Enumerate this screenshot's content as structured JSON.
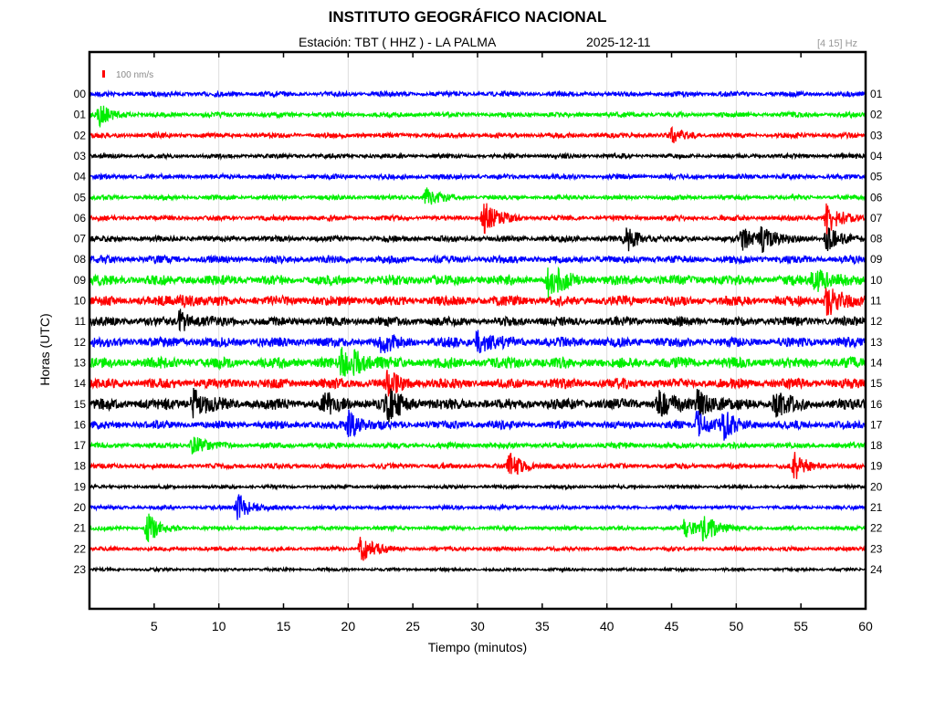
{
  "header": {
    "title": "INSTITUTO GEOGRÁFICO NACIONAL",
    "station": "Estación:  TBT ( HHZ ) - LA PALMA",
    "date": "2025-12-11",
    "band": "[4 15] Hz"
  },
  "chart_data": {
    "type": "line",
    "title": "INSTITUTO GEOGRÁFICO NACIONAL",
    "xlabel": "Tiempo (minutos)",
    "ylabel": "Horas (UTC)",
    "xlim": [
      0,
      60
    ],
    "x_ticks": [
      "5",
      "10",
      "15",
      "20",
      "25",
      "30",
      "35",
      "40",
      "45",
      "50",
      "55",
      "60"
    ],
    "y_ticks_left": [
      "00",
      "01",
      "02",
      "03",
      "04",
      "05",
      "06",
      "07",
      "08",
      "09",
      "10",
      "11",
      "12",
      "13",
      "14",
      "15",
      "16",
      "17",
      "18",
      "19",
      "20",
      "21",
      "22",
      "23"
    ],
    "y_ticks_right": [
      "01",
      "02",
      "03",
      "04",
      "05",
      "06",
      "07",
      "08",
      "09",
      "10",
      "11",
      "12",
      "13",
      "14",
      "15",
      "16",
      "17",
      "18",
      "19",
      "20",
      "21",
      "22",
      "23",
      "24"
    ],
    "scale_label": "100 nm/s",
    "colors": [
      "#0000ff",
      "#00ee00",
      "#ff0000",
      "#000000"
    ],
    "noise_level": [
      1,
      1,
      1,
      0.9,
      1,
      0.9,
      1,
      1.2,
      1.5,
      2,
      2,
      1.8,
      2,
      2.2,
      2,
      2.2,
      1.6,
      1.1,
      1,
      0.7,
      0.8,
      0.8,
      0.8,
      0.6
    ],
    "events": [
      {
        "hour": 1,
        "minute": 0.8,
        "amp": 4
      },
      {
        "hour": 2,
        "minute": 45,
        "amp": 3
      },
      {
        "hour": 5,
        "minute": 26,
        "amp": 4
      },
      {
        "hour": 6,
        "minute": 30.5,
        "amp": 7
      },
      {
        "hour": 6,
        "minute": 57,
        "amp": 7
      },
      {
        "hour": 7,
        "minute": 41.5,
        "amp": 5
      },
      {
        "hour": 7,
        "minute": 50.5,
        "amp": 5
      },
      {
        "hour": 7,
        "minute": 52,
        "amp": 5
      },
      {
        "hour": 7,
        "minute": 57,
        "amp": 5
      },
      {
        "hour": 9,
        "minute": 35.5,
        "amp": 7
      },
      {
        "hour": 9,
        "minute": 56,
        "amp": 6
      },
      {
        "hour": 10,
        "minute": 57,
        "amp": 7
      },
      {
        "hour": 10,
        "minute": 7,
        "amp": 3
      },
      {
        "hour": 11,
        "minute": 7,
        "amp": 5
      },
      {
        "hour": 12,
        "minute": 22.5,
        "amp": 4
      },
      {
        "hour": 12,
        "minute": 30,
        "amp": 5
      },
      {
        "hour": 13,
        "minute": 19.5,
        "amp": 5
      },
      {
        "hour": 13,
        "minute": 20.5,
        "amp": 4
      },
      {
        "hour": 14,
        "minute": 23,
        "amp": 5
      },
      {
        "hour": 15,
        "minute": 8,
        "amp": 6
      },
      {
        "hour": 15,
        "minute": 18,
        "amp": 5
      },
      {
        "hour": 15,
        "minute": 23,
        "amp": 8
      },
      {
        "hour": 15,
        "minute": 44,
        "amp": 5
      },
      {
        "hour": 15,
        "minute": 47,
        "amp": 6
      },
      {
        "hour": 15,
        "minute": 53,
        "amp": 5
      },
      {
        "hour": 16,
        "minute": 20,
        "amp": 6
      },
      {
        "hour": 16,
        "minute": 47,
        "amp": 6
      },
      {
        "hour": 16,
        "minute": 49,
        "amp": 5
      },
      {
        "hour": 17,
        "minute": 8,
        "amp": 4
      },
      {
        "hour": 18,
        "minute": 32.5,
        "amp": 6
      },
      {
        "hour": 18,
        "minute": 54.5,
        "amp": 6
      },
      {
        "hour": 20,
        "minute": 11.5,
        "amp": 6
      },
      {
        "hour": 21,
        "minute": 4.5,
        "amp": 6
      },
      {
        "hour": 21,
        "minute": 46,
        "amp": 4
      },
      {
        "hour": 21,
        "minute": 47.5,
        "amp": 6
      },
      {
        "hour": 22,
        "minute": 21,
        "amp": 6
      }
    ]
  }
}
